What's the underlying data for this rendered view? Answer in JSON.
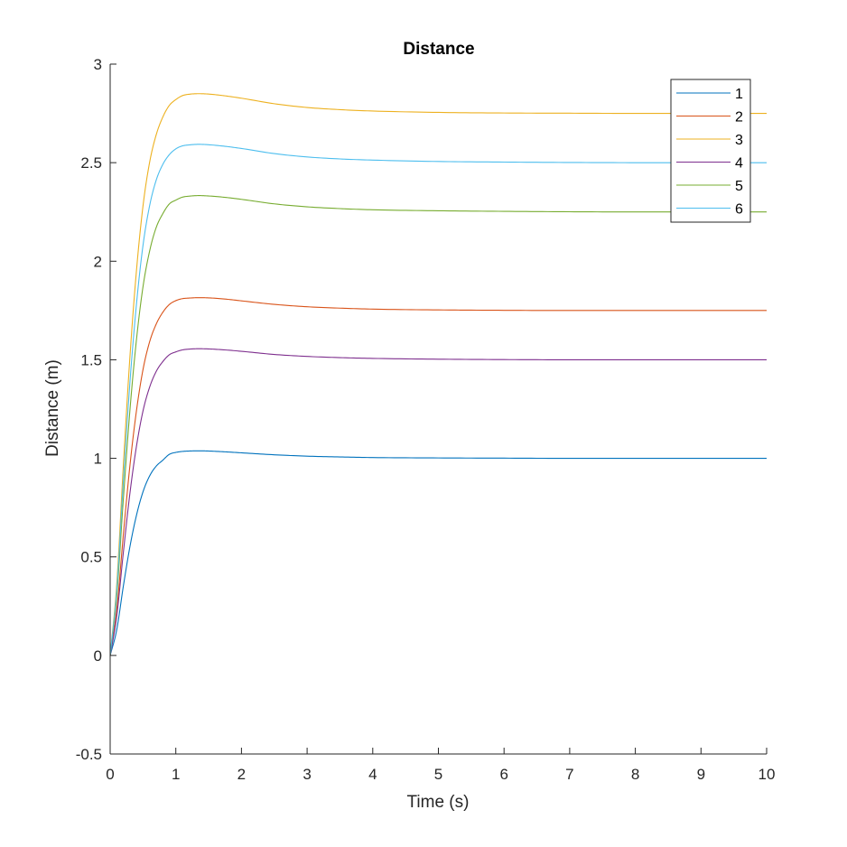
{
  "chart_data": {
    "type": "line",
    "title": "Distance",
    "xlabel": "Time (s)",
    "ylabel": "Distance (m)",
    "xlim": [
      0,
      10
    ],
    "ylim": [
      -0.5,
      3
    ],
    "xticks": [
      "0",
      "1",
      "2",
      "3",
      "4",
      "5",
      "6",
      "7",
      "8",
      "9",
      "10"
    ],
    "yticks": [
      "-0.5",
      "0",
      "0.5",
      "1",
      "1.5",
      "2",
      "2.5",
      "3"
    ],
    "grid": false,
    "legend_position": "top-right",
    "series": [
      {
        "name": "1",
        "color": "#0072BD",
        "x": [
          0,
          0.1,
          0.2,
          0.3,
          0.4,
          0.5,
          0.6,
          0.7,
          0.8,
          0.9,
          1.0,
          1.1,
          1.2,
          1.35,
          1.5,
          1.75,
          2,
          2.5,
          3,
          3.5,
          4,
          5,
          6,
          7,
          8,
          9,
          10
        ],
        "y": [
          0,
          0.13,
          0.35,
          0.55,
          0.71,
          0.83,
          0.91,
          0.96,
          0.99,
          1.02,
          1.03,
          1.035,
          1.037,
          1.038,
          1.037,
          1.033,
          1.028,
          1.018,
          1.011,
          1.007,
          1.004,
          1.002,
          1.001,
          1.0,
          1.0,
          1.0,
          1.0
        ]
      },
      {
        "name": "2",
        "color": "#D95319",
        "x": [
          0,
          0.1,
          0.2,
          0.3,
          0.4,
          0.5,
          0.6,
          0.7,
          0.8,
          0.9,
          1.0,
          1.1,
          1.2,
          1.35,
          1.5,
          1.75,
          2,
          2.5,
          3,
          3.5,
          4,
          5,
          6,
          7,
          8,
          9,
          10
        ],
        "y": [
          0,
          0.23,
          0.61,
          0.96,
          1.24,
          1.45,
          1.59,
          1.68,
          1.74,
          1.78,
          1.8,
          1.81,
          1.813,
          1.815,
          1.814,
          1.808,
          1.799,
          1.781,
          1.769,
          1.762,
          1.757,
          1.753,
          1.751,
          1.75,
          1.75,
          1.75,
          1.75
        ]
      },
      {
        "name": "3",
        "color": "#EDB120",
        "x": [
          0,
          0.1,
          0.2,
          0.3,
          0.4,
          0.5,
          0.6,
          0.7,
          0.8,
          0.9,
          1.0,
          1.1,
          1.2,
          1.35,
          1.5,
          1.75,
          2,
          2.5,
          3,
          3.5,
          4,
          5,
          6,
          7,
          8,
          9,
          10
        ],
        "y": [
          0,
          0.36,
          0.96,
          1.51,
          1.95,
          2.28,
          2.5,
          2.64,
          2.73,
          2.79,
          2.82,
          2.84,
          2.847,
          2.85,
          2.848,
          2.839,
          2.827,
          2.799,
          2.78,
          2.769,
          2.762,
          2.755,
          2.752,
          2.751,
          2.75,
          2.75,
          2.75
        ]
      },
      {
        "name": "4",
        "color": "#7E2F8E",
        "x": [
          0,
          0.1,
          0.2,
          0.3,
          0.4,
          0.5,
          0.6,
          0.7,
          0.8,
          0.9,
          1.0,
          1.1,
          1.2,
          1.35,
          1.5,
          1.75,
          2,
          2.5,
          3,
          3.5,
          4,
          5,
          6,
          7,
          8,
          9,
          10
        ],
        "y": [
          0,
          0.2,
          0.52,
          0.82,
          1.06,
          1.24,
          1.36,
          1.44,
          1.49,
          1.525,
          1.54,
          1.55,
          1.554,
          1.556,
          1.555,
          1.55,
          1.543,
          1.527,
          1.517,
          1.511,
          1.507,
          1.503,
          1.501,
          1.5,
          1.5,
          1.5,
          1.5
        ]
      },
      {
        "name": "5",
        "color": "#77AC30",
        "x": [
          0,
          0.1,
          0.2,
          0.3,
          0.4,
          0.5,
          0.6,
          0.7,
          0.8,
          0.9,
          1.0,
          1.1,
          1.2,
          1.35,
          1.5,
          1.75,
          2,
          2.5,
          3,
          3.5,
          4,
          5,
          6,
          7,
          8,
          9,
          10
        ],
        "y": [
          0,
          0.3,
          0.79,
          1.24,
          1.6,
          1.87,
          2.05,
          2.17,
          2.24,
          2.29,
          2.31,
          2.325,
          2.33,
          2.333,
          2.331,
          2.324,
          2.314,
          2.291,
          2.276,
          2.267,
          2.261,
          2.256,
          2.253,
          2.251,
          2.25,
          2.25,
          2.25
        ]
      },
      {
        "name": "6",
        "color": "#4DBEEE",
        "x": [
          0,
          0.1,
          0.2,
          0.3,
          0.4,
          0.5,
          0.6,
          0.7,
          0.8,
          0.9,
          1.0,
          1.1,
          1.2,
          1.35,
          1.5,
          1.75,
          2,
          2.5,
          3,
          3.5,
          4,
          5,
          6,
          7,
          8,
          9,
          10
        ],
        "y": [
          0,
          0.33,
          0.88,
          1.38,
          1.78,
          2.08,
          2.28,
          2.41,
          2.49,
          2.54,
          2.57,
          2.585,
          2.59,
          2.593,
          2.591,
          2.583,
          2.572,
          2.546,
          2.529,
          2.519,
          2.513,
          2.506,
          2.503,
          2.501,
          2.5,
          2.5,
          2.5
        ]
      }
    ]
  }
}
